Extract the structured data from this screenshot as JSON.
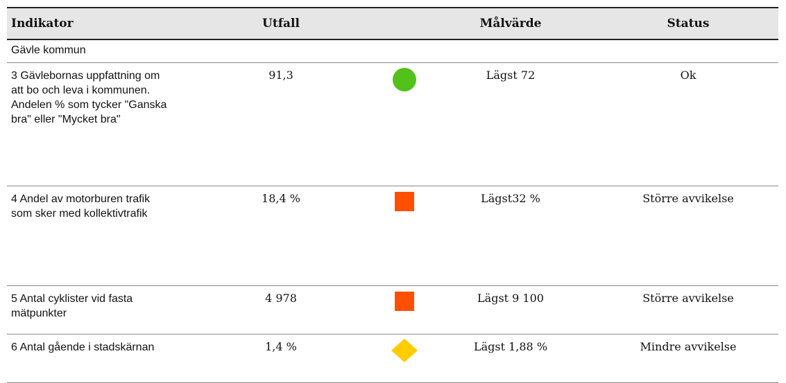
{
  "table": {
    "header": [
      "Indikator",
      "Utfall",
      "Målvärde",
      "Status"
    ],
    "group": "Gävle kommun",
    "rows": [
      [
        "3 Gävlebornas uppfattning om att bo och leva i kommunen. Andelen % som tycker \"Ganska bra\" eller \"Mycket bra\"",
        "91,3",
        "Lägst 72",
        "Ok"
      ],
      [
        "4 Andel av motorburen trafik som sker med kollektivtrafik",
        "18,4 %",
        "Lägst32 %",
        "Större avvikelse"
      ],
      [
        "5 Antal cyklister vid fasta mätpunkter",
        "4 978",
        "Lägst 9 100",
        "Större avvikelse"
      ],
      [
        "6 Antal gående i stadskärnan",
        "1,4 %",
        "Lägst 1,88 %",
        "Mindre avvikelse"
      ]
    ]
  }
}
